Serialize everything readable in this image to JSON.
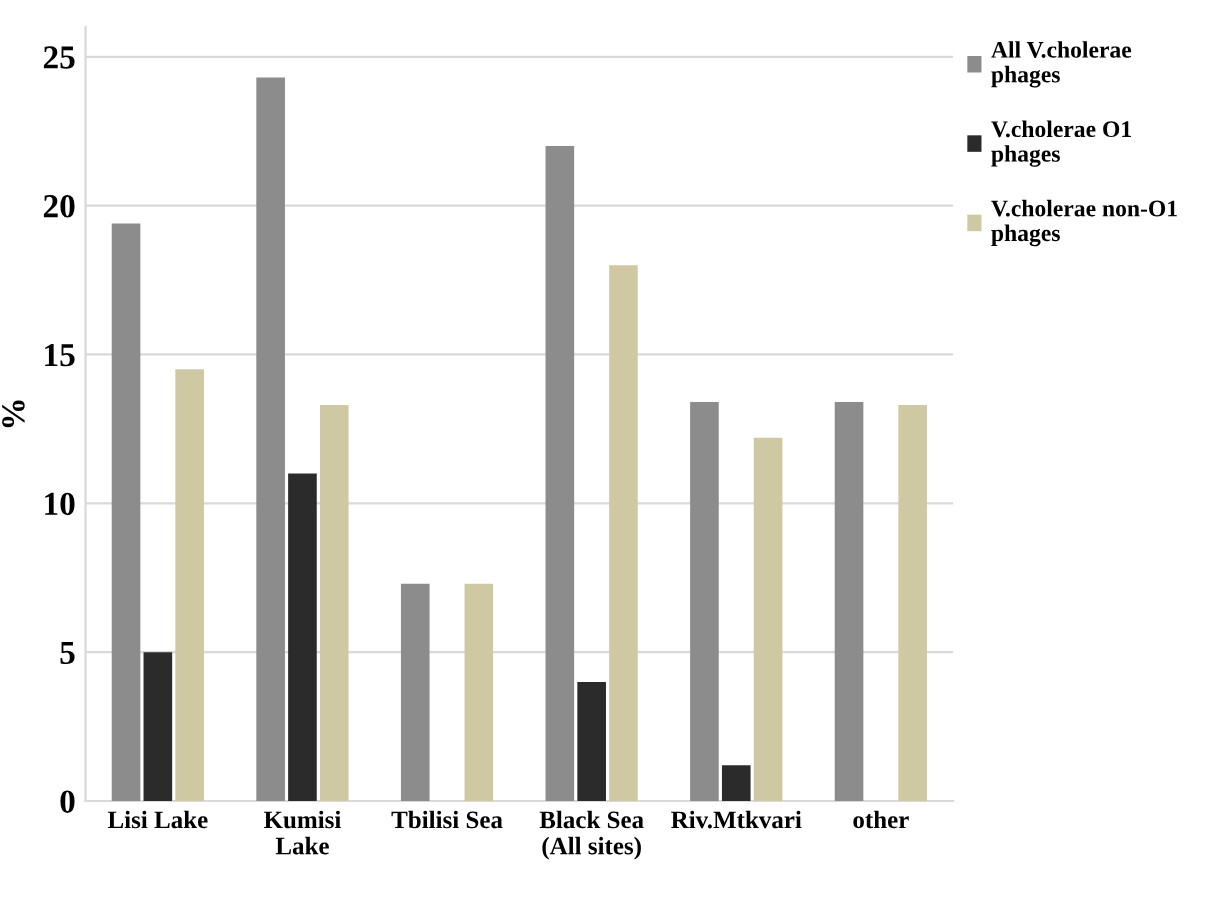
{
  "chart_data": {
    "type": "bar",
    "ylabel": "%",
    "categories": [
      "Lisi Lake",
      "Kumisi\nLake",
      "Tbilisi Sea",
      "Black Sea\n(All sites)",
      "Riv.Mtkvari",
      "other"
    ],
    "series": [
      {
        "name": "All V.cholerae\nphages",
        "color": "#8c8c8c",
        "values": [
          19.4,
          24.3,
          7.3,
          22.0,
          13.4,
          13.4
        ]
      },
      {
        "name": "V.cholerae O1\nphages",
        "color": "#2b2b2b",
        "values": [
          5.0,
          11.0,
          0,
          4.0,
          1.2,
          0
        ]
      },
      {
        "name": "V.cholerae non-O1\nphages",
        "color": "#cfc9a3",
        "values": [
          14.5,
          13.3,
          7.3,
          18.0,
          12.2,
          13.3
        ]
      }
    ],
    "ylim": [
      0,
      26
    ],
    "yticks": [
      0,
      5,
      10,
      15,
      20,
      25
    ],
    "grid": "y",
    "legend": "top right"
  }
}
